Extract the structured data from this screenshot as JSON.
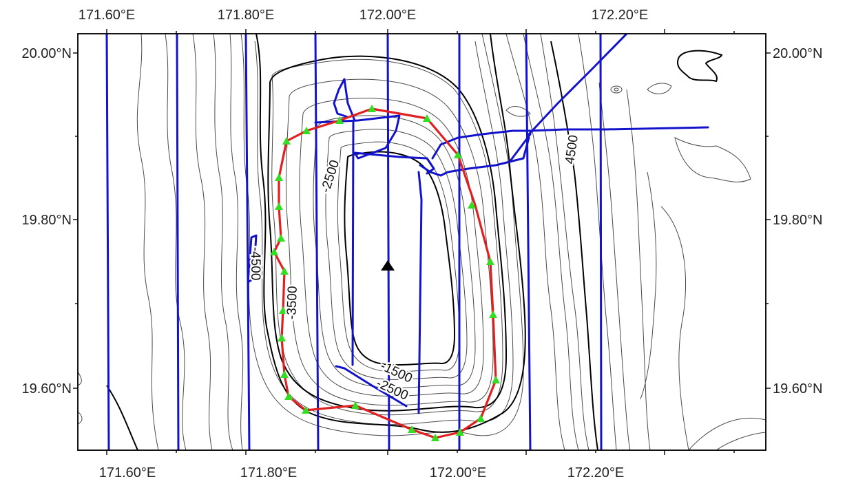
{
  "map": {
    "top_labels": [
      "171.60°E",
      "171.80°E",
      "172.00°E",
      "172.20°E"
    ],
    "bottom_labels": [
      "171.60°E",
      "171.80°E",
      "172.00°E",
      "172.20°E"
    ],
    "left_labels": [
      "20.00°N",
      "19.80°N",
      "19.60°N"
    ],
    "right_labels": [
      "20.00°N",
      "19.80°N",
      "19.60°N"
    ],
    "contour_labels": [
      "-2500",
      "-3500",
      "-1500",
      "-2500",
      "4500",
      "-4500"
    ],
    "colors": {
      "frame": "#000000",
      "contour": "#3a3a3a",
      "track": "#1010c8",
      "survey_line": "#e02020",
      "station": "#33dd22",
      "center_marker": "#000000"
    },
    "symbols": {
      "station": "green-triangle",
      "center": "black-triangle"
    }
  }
}
